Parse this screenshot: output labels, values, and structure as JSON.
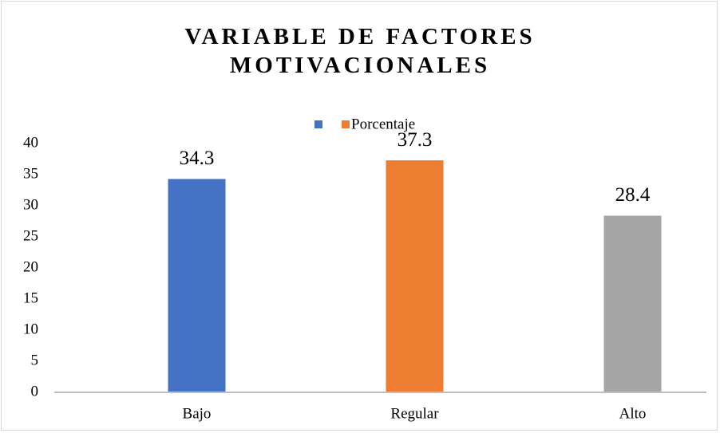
{
  "chart_data": {
    "type": "bar",
    "title": "VARIABLE DE FACTORES MOTIVACIONALES",
    "categories": [
      "Bajo",
      "Regular",
      "Alto"
    ],
    "series": [
      {
        "name": "Porcentaje",
        "colors": [
          "#4472c4",
          "#ed7d31",
          "#a5a5a5"
        ],
        "values": [
          34.3,
          37.3,
          28.4
        ]
      }
    ],
    "ylim": [
      0,
      40
    ],
    "yticks": [
      0,
      5,
      10,
      15,
      20,
      25,
      30,
      35,
      40
    ],
    "grid": false,
    "legend": "top",
    "data_labels": true
  }
}
